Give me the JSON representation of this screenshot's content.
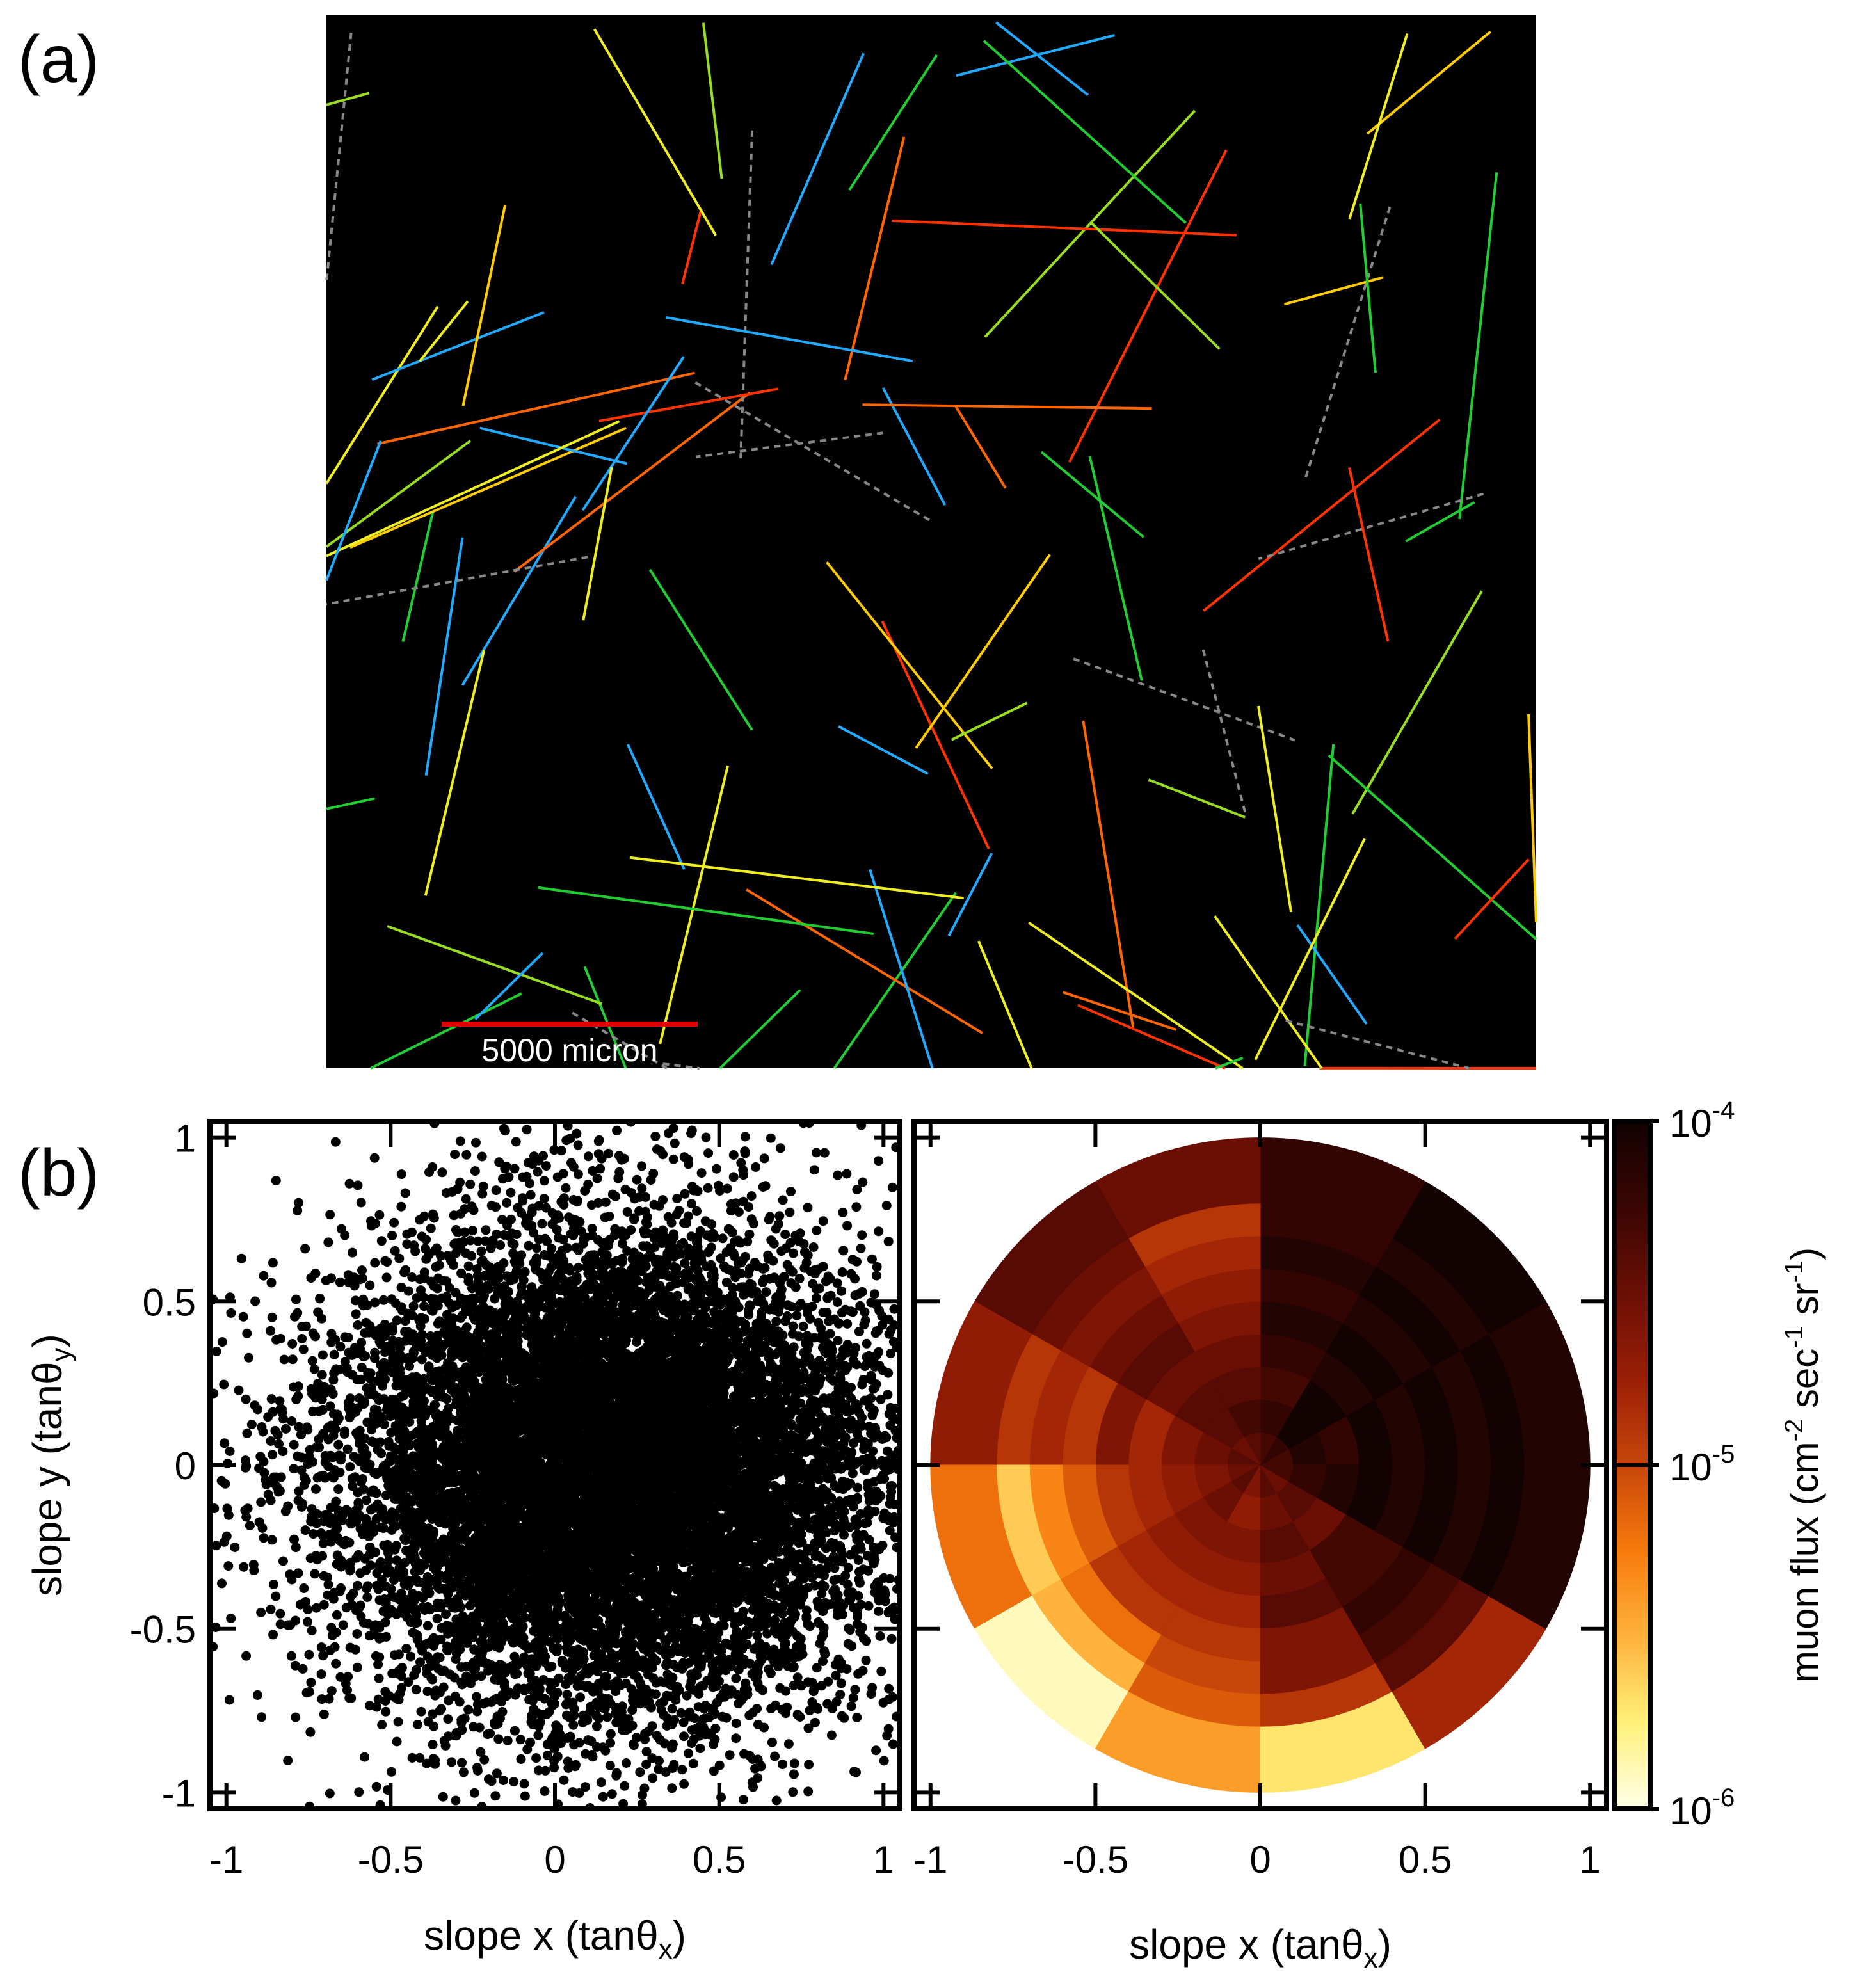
{
  "figure": {
    "panel_a_label": "(a)",
    "panel_b_label": "(b)"
  },
  "chart_data": [
    {
      "type": "image",
      "panel": "(a)",
      "scale_bar_label": "5000 micron",
      "colors": {
        "background": "#000000",
        "scale_bar": "#e00000",
        "track_palette": [
          "#ff3300",
          "#ff6600",
          "#ffcc00",
          "#eeee22",
          "#99dd22",
          "#22cc33",
          "#22aaff",
          "#888888"
        ]
      }
    },
    {
      "type": "scatter",
      "panel": "(b) left",
      "xlabel": "slope x (tanθ",
      "xlabel_sub": "x",
      "ylabel": "slope y (tanθ",
      "ylabel_sub": "y",
      "xlim": [
        -1.05,
        1.05
      ],
      "ylim": [
        -1.05,
        1.05
      ],
      "xticks": [
        "-1",
        "-0.5",
        "0",
        "0.5",
        "1"
      ],
      "yticks": [
        "-1",
        "-0.5",
        "0",
        "0.5",
        "1"
      ],
      "point_color": "#000000",
      "n_points": 12000,
      "distribution": {
        "center_x": 0.18,
        "center_y": -0.02,
        "sigma_x": 0.42,
        "sigma_y": 0.38
      }
    },
    {
      "type": "heatmap",
      "panel": "(b) right",
      "projection": "polar",
      "xlabel": "slope x (tanθ",
      "xlabel_sub": "x",
      "xlim": [
        -1.05,
        1.05
      ],
      "ylim": [
        -1.05,
        1.05
      ],
      "xticks": [
        "-1",
        "-0.5",
        "0",
        "0.5",
        "1"
      ],
      "r_edges": [
        0,
        0.1,
        0.2,
        0.3,
        0.4,
        0.5,
        0.6,
        0.7,
        0.8,
        1.0
      ],
      "n_phi": 12,
      "phi_unit_deg": 30,
      "phi_start_deg": 0,
      "flux_log10": [
        [
          -4.3,
          -4.2,
          -4.3,
          -4.4,
          -4.5,
          -4.4,
          -4.5,
          -4.4,
          -4.6,
          -4.4,
          -4.5,
          -4.3
        ],
        [
          -4.1,
          -4.0,
          -4.2,
          -4.3,
          -4.4,
          -4.5,
          -4.6,
          -4.5,
          -4.7,
          -4.5,
          -4.4,
          -4.2
        ],
        [
          -4.2,
          -4.0,
          -4.3,
          -4.4,
          -4.4,
          -4.6,
          -4.7,
          -4.6,
          -4.6,
          -4.4,
          -4.5,
          -4.1
        ],
        [
          -4.0,
          -4.1,
          -4.2,
          -4.5,
          -4.5,
          -4.8,
          -4.8,
          -4.7,
          -4.7,
          -4.5,
          -4.3,
          -4.0
        ],
        [
          -4.1,
          -4.0,
          -4.1,
          -4.6,
          -4.4,
          -4.6,
          -4.9,
          -4.8,
          -4.8,
          -4.4,
          -4.3,
          -4.1
        ],
        [
          -4.0,
          -4.1,
          -4.2,
          -4.7,
          -4.5,
          -4.9,
          -5.1,
          -4.9,
          -4.9,
          -4.6,
          -4.2,
          -4.0
        ],
        [
          -4.1,
          -4.0,
          -4.1,
          -4.8,
          -4.6,
          -4.8,
          -5.3,
          -5.2,
          -5.0,
          -4.6,
          -4.3,
          -4.1
        ],
        [
          -4.0,
          -4.1,
          -4.2,
          -4.9,
          -4.5,
          -4.9,
          -5.6,
          -5.5,
          -5.1,
          -4.9,
          -4.4,
          -4.0
        ],
        [
          -4.1,
          -4.0,
          -4.2,
          -4.5,
          -4.4,
          -4.7,
          -5.2,
          -5.9,
          -5.4,
          -5.7,
          -4.8,
          -4.1
        ]
      ],
      "wedge_exclude": [
        [
          8,
          10,
          "-99"
        ]
      ],
      "colorbar": {
        "label": "muon flux (cm",
        "label_units_tail": "sec",
        "label_units_end": "sr",
        "exp_neg2": "-2",
        "exp_neg1": "-1",
        "tick_base": "10",
        "tick_exponents": [
          "-4",
          "-5",
          "-6"
        ],
        "tick_values_log10": [
          -4,
          -5,
          -6
        ],
        "range_log10": [
          -6,
          -4
        ],
        "colors": [
          "#ffffe8",
          "#fff07a",
          "#ffb23c",
          "#f77a0c",
          "#c8460a",
          "#9a1f06",
          "#6b0f05",
          "#3a0603",
          "#120201"
        ]
      }
    }
  ]
}
